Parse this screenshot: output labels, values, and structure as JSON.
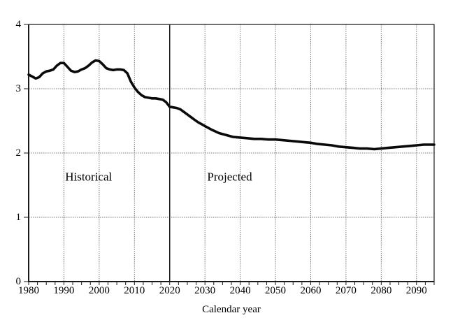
{
  "chart_data": {
    "type": "line",
    "title": "",
    "xlabel": "Calendar year",
    "ylabel": "",
    "x_range": [
      1980,
      2095
    ],
    "y_range": [
      0,
      4
    ],
    "x_major_ticks": [
      1980,
      1990,
      2000,
      2010,
      2020,
      2030,
      2040,
      2050,
      2060,
      2070,
      2080,
      2090
    ],
    "x_minor_tick_step": 2.5,
    "y_ticks": [
      0,
      1,
      2,
      3,
      4
    ],
    "grid": "dotted",
    "divider_x": 2020,
    "annotations": [
      {
        "text": "Historical",
        "x": 1997,
        "y": 1.63
      },
      {
        "text": "Projected",
        "x": 2037,
        "y": 1.63
      }
    ],
    "series": [
      {
        "name": "Historical",
        "points": [
          [
            1980,
            3.22
          ],
          [
            1981,
            3.19
          ],
          [
            1982,
            3.16
          ],
          [
            1983,
            3.18
          ],
          [
            1984,
            3.24
          ],
          [
            1985,
            3.27
          ],
          [
            1986,
            3.28
          ],
          [
            1987,
            3.3
          ],
          [
            1988,
            3.36
          ],
          [
            1989,
            3.4
          ],
          [
            1990,
            3.4
          ],
          [
            1991,
            3.34
          ],
          [
            1992,
            3.28
          ],
          [
            1993,
            3.26
          ],
          [
            1994,
            3.27
          ],
          [
            1995,
            3.3
          ],
          [
            1996,
            3.32
          ],
          [
            1997,
            3.36
          ],
          [
            1998,
            3.41
          ],
          [
            1999,
            3.44
          ],
          [
            2000,
            3.43
          ],
          [
            2001,
            3.38
          ],
          [
            2002,
            3.32
          ],
          [
            2003,
            3.3
          ],
          [
            2004,
            3.29
          ],
          [
            2005,
            3.3
          ],
          [
            2006,
            3.3
          ],
          [
            2007,
            3.29
          ],
          [
            2008,
            3.24
          ],
          [
            2009,
            3.11
          ],
          [
            2010,
            3.02
          ],
          [
            2011,
            2.95
          ],
          [
            2012,
            2.9
          ],
          [
            2013,
            2.87
          ],
          [
            2014,
            2.86
          ],
          [
            2015,
            2.85
          ],
          [
            2016,
            2.85
          ],
          [
            2017,
            2.84
          ],
          [
            2018,
            2.83
          ],
          [
            2019,
            2.79
          ],
          [
            2020,
            2.72
          ]
        ]
      },
      {
        "name": "Projected",
        "points": [
          [
            2020,
            2.72
          ],
          [
            2021,
            2.71
          ],
          [
            2022,
            2.7
          ],
          [
            2023,
            2.68
          ],
          [
            2024,
            2.64
          ],
          [
            2025,
            2.6
          ],
          [
            2026,
            2.56
          ],
          [
            2027,
            2.52
          ],
          [
            2028,
            2.48
          ],
          [
            2029,
            2.45
          ],
          [
            2030,
            2.42
          ],
          [
            2032,
            2.36
          ],
          [
            2034,
            2.31
          ],
          [
            2036,
            2.28
          ],
          [
            2038,
            2.25
          ],
          [
            2040,
            2.24
          ],
          [
            2042,
            2.23
          ],
          [
            2044,
            2.22
          ],
          [
            2046,
            2.22
          ],
          [
            2048,
            2.21
          ],
          [
            2050,
            2.21
          ],
          [
            2052,
            2.2
          ],
          [
            2054,
            2.19
          ],
          [
            2056,
            2.18
          ],
          [
            2058,
            2.17
          ],
          [
            2060,
            2.16
          ],
          [
            2062,
            2.14
          ],
          [
            2064,
            2.13
          ],
          [
            2066,
            2.12
          ],
          [
            2068,
            2.1
          ],
          [
            2070,
            2.09
          ],
          [
            2072,
            2.08
          ],
          [
            2074,
            2.07
          ],
          [
            2076,
            2.07
          ],
          [
            2078,
            2.06
          ],
          [
            2080,
            2.07
          ],
          [
            2082,
            2.08
          ],
          [
            2084,
            2.09
          ],
          [
            2086,
            2.1
          ],
          [
            2088,
            2.11
          ],
          [
            2090,
            2.12
          ],
          [
            2092,
            2.13
          ],
          [
            2095,
            2.13
          ]
        ]
      }
    ],
    "legend": "none"
  },
  "style": {
    "line_color": "#0a0a0a",
    "grid_color": "#777777",
    "axis_color": "#1a1a1a",
    "divider_color": "#1a1a1a",
    "background": "#ffffff"
  }
}
